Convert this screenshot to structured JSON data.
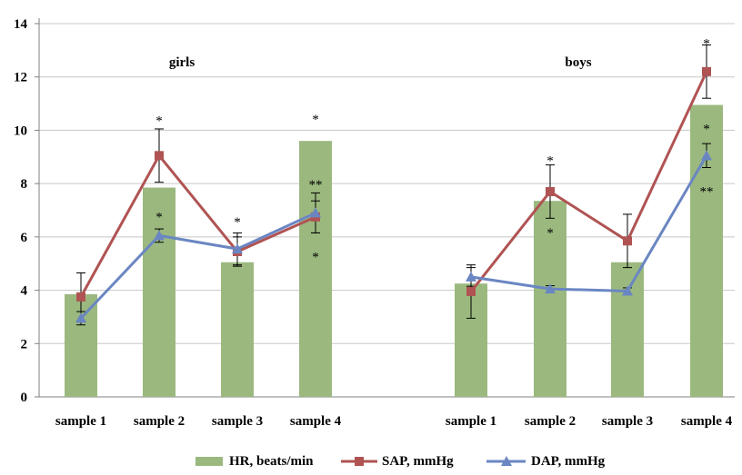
{
  "chart_data": {
    "type": "bar",
    "title": "",
    "xlabel": "",
    "ylabel": "",
    "ylim": [
      0,
      14
    ],
    "yticks": [
      "0",
      "2",
      "4",
      "6",
      "8",
      "10",
      "12",
      "14"
    ],
    "grid": true,
    "legend_position": "bottom",
    "groups": [
      {
        "label": "girls",
        "categories": [
          "sample 1",
          "sample 2",
          "sample 3",
          "sample 4"
        ],
        "HR": [
          3.85,
          7.85,
          5.05,
          9.6
        ],
        "SAP": [
          3.75,
          9.05,
          5.45,
          6.75
        ],
        "SAP_err": [
          0.9,
          1.0,
          0.55,
          0.6
        ],
        "DAP": [
          2.95,
          6.05,
          5.55,
          6.9
        ],
        "DAP_err": [
          0.25,
          0.25,
          0.6,
          0.75
        ],
        "annotations": [
          {
            "category": 1,
            "y": 10.4,
            "text": "*"
          },
          {
            "category": 1,
            "y": 6.8,
            "text": "*"
          },
          {
            "category": 2,
            "y": 6.6,
            "text": "*"
          },
          {
            "category": 3,
            "y": 10.45,
            "text": "*"
          },
          {
            "category": 3,
            "y": 8.0,
            "text": "**"
          },
          {
            "category": 3,
            "y": 5.3,
            "text": "*"
          }
        ]
      },
      {
        "label": "boys",
        "categories": [
          "sample 1",
          "sample 2",
          "sample 3",
          "sample 4"
        ],
        "HR": [
          4.25,
          7.35,
          5.05,
          10.95
        ],
        "SAP": [
          3.95,
          7.7,
          5.85,
          12.2
        ],
        "SAP_err": [
          1.0,
          1.0,
          1.0,
          1.0
        ],
        "DAP": [
          4.5,
          4.05,
          3.97,
          9.05
        ],
        "DAP_err": [
          0.35,
          0.12,
          0.12,
          0.45
        ],
        "annotations": [
          {
            "category": 1,
            "y": 8.9,
            "text": "*"
          },
          {
            "category": 1,
            "y": 6.2,
            "text": "*"
          },
          {
            "category": 3,
            "y": 13.3,
            "text": "*"
          },
          {
            "category": 3,
            "y": 10.1,
            "text": "*"
          },
          {
            "category": 3,
            "y": 7.75,
            "text": "**"
          }
        ]
      }
    ],
    "series": [
      {
        "name": "HR, beats/min",
        "kind": "bar",
        "color": "#9bb97f"
      },
      {
        "name": "SAP, mmHg",
        "kind": "line",
        "marker": "square",
        "color": "#b05353"
      },
      {
        "name": "DAP, mmHg",
        "kind": "line",
        "marker": "triangle",
        "color": "#6a86c2"
      }
    ]
  }
}
